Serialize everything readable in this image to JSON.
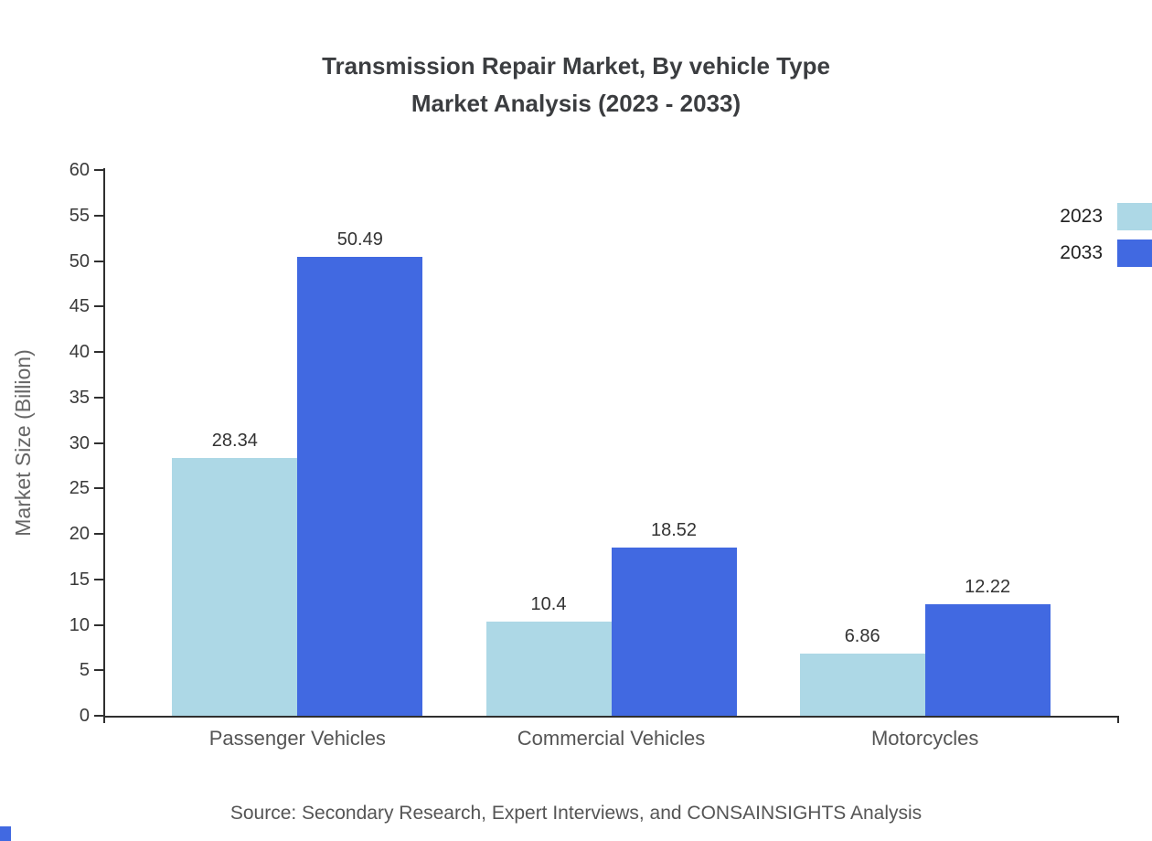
{
  "title": {
    "line1": "Transmission Repair Market, By vehicle Type",
    "line2": "Market Analysis (2023 - 2033)"
  },
  "source": "Source: Secondary Research, Expert Interviews, and CONSAINSIGHTS Analysis",
  "legend": [
    {
      "label": "2023",
      "color": "#ADD8E6"
    },
    {
      "label": "2033",
      "color": "#4169E1"
    }
  ],
  "brand_mark_color": "#4169E1",
  "chart_data": {
    "type": "bar",
    "title": "Transmission Repair Market, By vehicle Type Market Analysis (2023 - 2033)",
    "categories": [
      "Passenger Vehicles",
      "Commercial Vehicles",
      "Motorcycles"
    ],
    "series": [
      {
        "name": "2023",
        "color": "#ADD8E6",
        "values": [
          28.34,
          10.4,
          6.86
        ]
      },
      {
        "name": "2033",
        "color": "#4169E1",
        "values": [
          50.49,
          18.52,
          12.22
        ]
      }
    ],
    "xlabel": "",
    "ylabel": "Market Size (Billion)",
    "ylim": [
      0,
      60
    ],
    "ytick_step": 5,
    "grid": false,
    "legend_position": "top-right",
    "value_labels": true
  }
}
